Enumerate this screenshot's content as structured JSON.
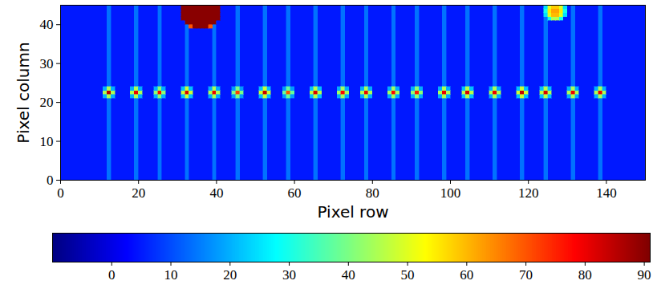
{
  "chart_data": {
    "type": "heatmap",
    "xlabel": "Pixel row",
    "ylabel": "Pixel column",
    "xlim": [
      0,
      150
    ],
    "ylim": [
      0,
      45
    ],
    "xticks": [
      0,
      20,
      40,
      60,
      80,
      100,
      120,
      140
    ],
    "yticks": [
      0,
      10,
      20,
      30,
      40
    ],
    "color": "jet",
    "colorbar": {
      "range": [
        -10,
        91
      ],
      "ticks": [
        0,
        10,
        20,
        30,
        40,
        50,
        60,
        70,
        80,
        90
      ]
    },
    "background": 5,
    "stripes": {
      "x": [
        12,
        19,
        25,
        32,
        39,
        45,
        52,
        58,
        65,
        72,
        78,
        85,
        91,
        98,
        104,
        111,
        118,
        124,
        131,
        138
      ],
      "value": 14
    },
    "patches": [
      {
        "x": 11,
        "y": 21,
        "values": [
          [
            20,
            45,
            20
          ],
          [
            45,
            85,
            45
          ],
          [
            20,
            45,
            20
          ]
        ]
      },
      {
        "x": 18,
        "y": 21,
        "values": [
          [
            20,
            45,
            20
          ],
          [
            45,
            80,
            45
          ],
          [
            20,
            45,
            20
          ]
        ]
      },
      {
        "x": 24,
        "y": 21,
        "values": [
          [
            20,
            42,
            20
          ],
          [
            42,
            78,
            42
          ],
          [
            20,
            42,
            20
          ]
        ]
      },
      {
        "x": 31,
        "y": 21,
        "values": [
          [
            22,
            48,
            22
          ],
          [
            48,
            82,
            48
          ],
          [
            22,
            48,
            22
          ]
        ]
      },
      {
        "x": 38,
        "y": 21,
        "values": [
          [
            20,
            45,
            20
          ],
          [
            45,
            80,
            45
          ],
          [
            20,
            45,
            20
          ]
        ]
      },
      {
        "x": 44,
        "y": 21,
        "values": [
          [
            18,
            40,
            18
          ],
          [
            40,
            72,
            40
          ],
          [
            18,
            40,
            18
          ]
        ]
      },
      {
        "x": 51,
        "y": 21,
        "values": [
          [
            22,
            48,
            22
          ],
          [
            48,
            84,
            48
          ],
          [
            22,
            48,
            22
          ]
        ]
      },
      {
        "x": 57,
        "y": 21,
        "values": [
          [
            18,
            38,
            18
          ],
          [
            38,
            70,
            38
          ],
          [
            18,
            38,
            18
          ]
        ]
      },
      {
        "x": 64,
        "y": 21,
        "values": [
          [
            22,
            46,
            22
          ],
          [
            46,
            82,
            46
          ],
          [
            22,
            46,
            22
          ]
        ]
      },
      {
        "x": 71,
        "y": 21,
        "values": [
          [
            20,
            44,
            20
          ],
          [
            44,
            78,
            44
          ],
          [
            20,
            44,
            20
          ]
        ]
      },
      {
        "x": 77,
        "y": 21,
        "values": [
          [
            20,
            45,
            20
          ],
          [
            45,
            80,
            45
          ],
          [
            20,
            45,
            20
          ]
        ]
      },
      {
        "x": 84,
        "y": 21,
        "values": [
          [
            20,
            44,
            20
          ],
          [
            44,
            78,
            44
          ],
          [
            20,
            44,
            20
          ]
        ]
      },
      {
        "x": 90,
        "y": 21,
        "values": [
          [
            20,
            42,
            20
          ],
          [
            42,
            76,
            42
          ],
          [
            20,
            42,
            20
          ]
        ]
      },
      {
        "x": 97,
        "y": 21,
        "values": [
          [
            20,
            45,
            20
          ],
          [
            45,
            80,
            45
          ],
          [
            20,
            45,
            20
          ]
        ]
      },
      {
        "x": 103,
        "y": 21,
        "values": [
          [
            22,
            46,
            22
          ],
          [
            46,
            82,
            46
          ],
          [
            22,
            46,
            22
          ]
        ]
      },
      {
        "x": 110,
        "y": 21,
        "values": [
          [
            20,
            45,
            20
          ],
          [
            45,
            80,
            45
          ],
          [
            20,
            45,
            20
          ]
        ]
      },
      {
        "x": 117,
        "y": 21,
        "values": [
          [
            22,
            48,
            22
          ],
          [
            48,
            84,
            48
          ],
          [
            22,
            48,
            22
          ]
        ]
      },
      {
        "x": 123,
        "y": 21,
        "values": [
          [
            22,
            46,
            22
          ],
          [
            46,
            82,
            46
          ],
          [
            22,
            46,
            22
          ]
        ]
      },
      {
        "x": 130,
        "y": 21,
        "values": [
          [
            20,
            45,
            20
          ],
          [
            45,
            80,
            45
          ],
          [
            20,
            45,
            20
          ]
        ]
      },
      {
        "x": 137,
        "y": 21,
        "values": [
          [
            20,
            45,
            20
          ],
          [
            45,
            80,
            45
          ],
          [
            20,
            45,
            20
          ]
        ]
      },
      {
        "x": 31,
        "y": 39,
        "values": [
          [
            null,
            null,
            70,
            90,
            90,
            90,
            90,
            70,
            null,
            null
          ],
          [
            null,
            90,
            90,
            90,
            90,
            90,
            90,
            90,
            90,
            null
          ],
          [
            90,
            90,
            90,
            90,
            90,
            90,
            90,
            90,
            90,
            90
          ],
          [
            90,
            90,
            90,
            90,
            90,
            90,
            90,
            90,
            90,
            90
          ],
          [
            90,
            90,
            90,
            90,
            90,
            90,
            90,
            90,
            90,
            90
          ],
          [
            90,
            90,
            90,
            90,
            90,
            90,
            90,
            90,
            90,
            90
          ]
        ]
      },
      {
        "x": 124,
        "y": 41,
        "values": [
          [
            null,
            30,
            45,
            45,
            30,
            null
          ],
          [
            25,
            50,
            60,
            60,
            50,
            25
          ],
          [
            30,
            55,
            62,
            62,
            55,
            30
          ],
          [
            25,
            50,
            58,
            58,
            50,
            25
          ]
        ]
      }
    ]
  }
}
